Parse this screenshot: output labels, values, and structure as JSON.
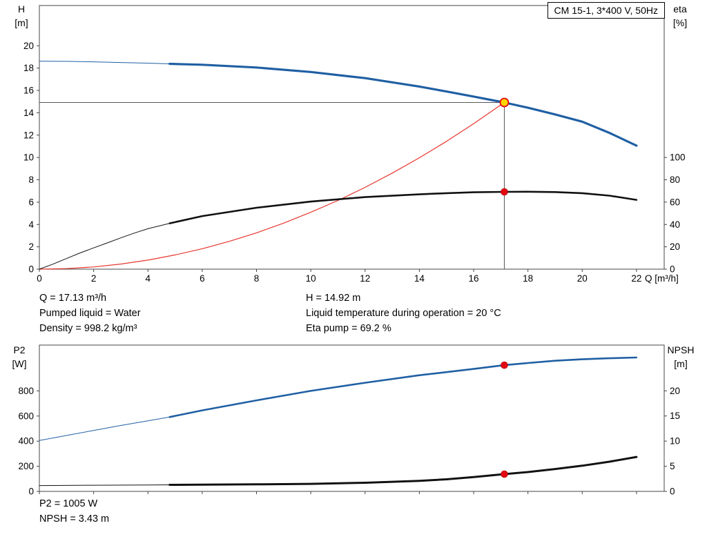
{
  "title_box": "CM 15-1, 3*400 V, 50Hz",
  "info": {
    "left": [
      "Q = 17.13 m³/h",
      "Pumped liquid = Water",
      "Density = 998.2 kg/m³"
    ],
    "center": [
      "H = 14.92 m",
      "Liquid temperature during operation = 20 °C",
      "Eta pump = 69.2 %"
    ],
    "bottom": [
      "P2 = 1005 W",
      "NPSH = 3.43 m"
    ]
  },
  "colors": {
    "curve_blue": "#1f5fa3",
    "curve_black": "#111111",
    "system_red": "#e8342c",
    "marker_red": "#e30613",
    "duty_yellow": "#ffd400",
    "frame": "#444444",
    "guide": "#555555"
  },
  "chart_data": [
    {
      "id": "qh-chart",
      "type": "line",
      "title": "CM 15-1, 3*400 V, 50Hz",
      "x_axis": {
        "label": "Q [m³/h]",
        "min": 0,
        "max": 23.02,
        "ticks": [
          0,
          2,
          4,
          6,
          8,
          10,
          12,
          14,
          16,
          18,
          20,
          22
        ],
        "show_labels": true
      },
      "y_left": {
        "name": "H",
        "unit": "[m]",
        "min": 0,
        "max": 23.6,
        "ticks": [
          0,
          2,
          4,
          6,
          8,
          10,
          12,
          14,
          16,
          18,
          20
        ]
      },
      "y_right": {
        "name": "eta",
        "unit": "[%]",
        "min": 0,
        "max": 236,
        "ticks": [
          0,
          20,
          40,
          60,
          80,
          100
        ]
      },
      "series": [
        {
          "id": "system-curve",
          "axis": "left",
          "color": "#e8342c",
          "width": 1.2,
          "points": [
            [
              0,
              0
            ],
            [
              1,
              0.05
            ],
            [
              2,
              0.2
            ],
            [
              3,
              0.46
            ],
            [
              4,
              0.81
            ],
            [
              5,
              1.27
            ],
            [
              6,
              1.83
            ],
            [
              7,
              2.49
            ],
            [
              8,
              3.25
            ],
            [
              9,
              4.12
            ],
            [
              10,
              5.09
            ],
            [
              11,
              6.15
            ],
            [
              12,
              7.32
            ],
            [
              13,
              8.6
            ],
            [
              14,
              9.97
            ],
            [
              15,
              11.44
            ],
            [
              16,
              13.02
            ],
            [
              17.13,
              14.92
            ]
          ]
        },
        {
          "id": "head-curve",
          "axis": "left",
          "color": "#1f5fa3",
          "width": 3.2,
          "pre": [
            [
              0,
              18.62
            ],
            [
              1,
              18.6
            ],
            [
              2,
              18.56
            ],
            [
              3,
              18.5
            ],
            [
              4,
              18.44
            ],
            [
              4.8,
              18.38
            ]
          ],
          "points": [
            [
              4.8,
              18.38
            ],
            [
              6,
              18.3
            ],
            [
              8,
              18.05
            ],
            [
              10,
              17.65
            ],
            [
              12,
              17.1
            ],
            [
              14,
              16.35
            ],
            [
              15,
              15.9
            ],
            [
              16,
              15.45
            ],
            [
              17.13,
              14.92
            ],
            [
              18,
              14.45
            ],
            [
              19,
              13.85
            ],
            [
              20,
              13.2
            ],
            [
              21,
              12.2
            ],
            [
              22,
              11.05
            ]
          ]
        },
        {
          "id": "eta-curve",
          "axis": "right",
          "color": "#111111",
          "width": 2.6,
          "pre": [
            [
              0,
              0
            ],
            [
              0.5,
              4.5
            ],
            [
              1,
              9.5
            ],
            [
              1.5,
              14.5
            ],
            [
              2,
              19
            ],
            [
              2.5,
              23.5
            ],
            [
              3,
              28
            ],
            [
              3.5,
              32.3
            ],
            [
              4,
              36.2
            ],
            [
              4.8,
              41
            ]
          ],
          "points": [
            [
              4.8,
              41
            ],
            [
              6,
              47.5
            ],
            [
              8,
              55
            ],
            [
              10,
              60.5
            ],
            [
              12,
              64.5
            ],
            [
              14,
              67
            ],
            [
              15,
              68
            ],
            [
              16,
              68.8
            ],
            [
              17.13,
              69.2
            ],
            [
              18,
              69.3
            ],
            [
              19,
              69
            ],
            [
              20,
              68
            ],
            [
              21,
              65.8
            ],
            [
              22,
              62
            ]
          ]
        }
      ],
      "guides": [
        {
          "dir": "v",
          "x": 17.13,
          "v0": 0,
          "v1": 14.92,
          "axis": "left",
          "name": "duty-flow-line"
        },
        {
          "dir": "h",
          "v": 14.92,
          "x0": 0,
          "x1": 17.13,
          "axis": "left",
          "name": "duty-head-line"
        }
      ],
      "markers": [
        {
          "name": "duty-point",
          "x": 17.13,
          "value": 14.92,
          "axis": "left",
          "style": "duty"
        },
        {
          "name": "eta-point",
          "x": 17.13,
          "value": 69.2,
          "axis": "right",
          "style": "dot"
        }
      ],
      "duty_point": {
        "Q_m3h": 17.13,
        "H_m": 14.92,
        "eta_pct": 69.2
      }
    },
    {
      "id": "p2-npsh-chart",
      "type": "line",
      "x_axis": {
        "label": "",
        "min": 0,
        "max": 23.02,
        "ticks": [
          0,
          2,
          4,
          6,
          8,
          10,
          12,
          14,
          16,
          18,
          20,
          22
        ],
        "show_labels": false
      },
      "y_left": {
        "name": "P2",
        "unit": "[W]",
        "min": 0,
        "max": 1165,
        "ticks": [
          0,
          200,
          400,
          600,
          800
        ]
      },
      "y_right": {
        "name": "NPSH",
        "unit": "[m]",
        "min": 0,
        "max": 29.1,
        "ticks": [
          0,
          5,
          10,
          15,
          20
        ]
      },
      "series": [
        {
          "id": "p2-curve",
          "axis": "left",
          "color": "#1f5fa3",
          "width": 2.6,
          "pre": [
            [
              0,
              405
            ],
            [
              1,
              445
            ],
            [
              2,
              485
            ],
            [
              3,
              525
            ],
            [
              4,
              562
            ],
            [
              4.8,
              592
            ]
          ],
          "points": [
            [
              4.8,
              592
            ],
            [
              6,
              645
            ],
            [
              8,
              725
            ],
            [
              10,
              800
            ],
            [
              12,
              865
            ],
            [
              14,
              925
            ],
            [
              16,
              975
            ],
            [
              17.13,
              1005
            ],
            [
              18,
              1022
            ],
            [
              19,
              1040
            ],
            [
              20,
              1052
            ],
            [
              21,
              1060
            ],
            [
              22,
              1066
            ]
          ]
        },
        {
          "id": "npsh-curve",
          "axis": "right",
          "color": "#111111",
          "width": 3,
          "pre": [
            [
              0,
              1.15
            ],
            [
              2,
              1.22
            ],
            [
              4,
              1.28
            ],
            [
              4.8,
              1.3
            ]
          ],
          "points": [
            [
              4.8,
              1.3
            ],
            [
              6,
              1.33
            ],
            [
              8,
              1.4
            ],
            [
              10,
              1.5
            ],
            [
              12,
              1.72
            ],
            [
              14,
              2.1
            ],
            [
              15,
              2.4
            ],
            [
              16,
              2.85
            ],
            [
              17.13,
              3.43
            ],
            [
              18,
              3.85
            ],
            [
              19,
              4.45
            ],
            [
              20,
              5.1
            ],
            [
              21,
              5.9
            ],
            [
              22,
              6.85
            ]
          ]
        }
      ],
      "guides": [],
      "markers": [
        {
          "name": "p2-point",
          "x": 17.13,
          "value": 1005,
          "axis": "left",
          "style": "dot"
        },
        {
          "name": "npsh-point",
          "x": 17.13,
          "value": 3.43,
          "axis": "right",
          "style": "dot"
        }
      ],
      "operating_point": {
        "P2_W": 1005,
        "NPSH_m": 3.43
      }
    }
  ]
}
